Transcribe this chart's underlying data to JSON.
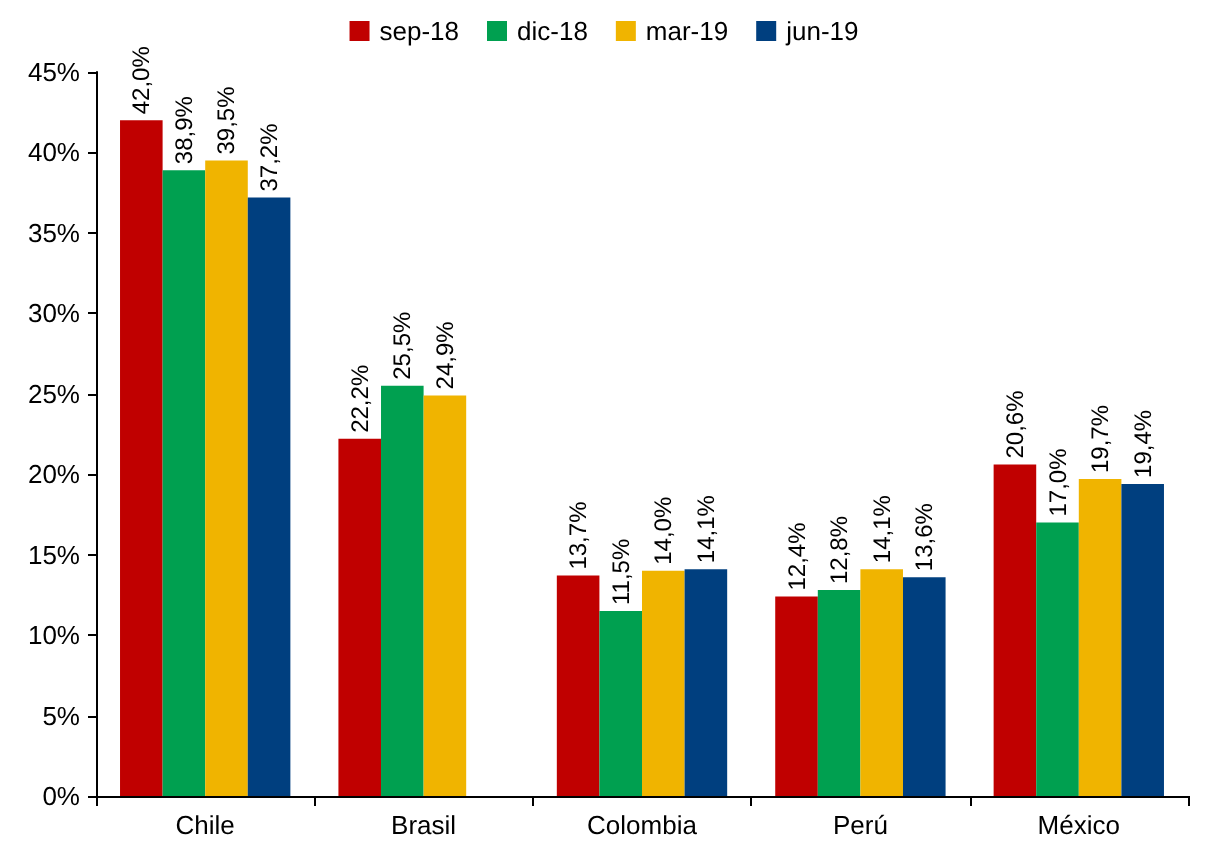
{
  "chart_data": {
    "type": "bar",
    "categories": [
      "Chile",
      "Brasil",
      "Colombia",
      "Perú",
      "México"
    ],
    "series": [
      {
        "name": "sep-18",
        "color": "#c00000",
        "values": [
          42.0,
          22.2,
          13.7,
          12.4,
          20.6
        ],
        "value_labels": [
          "42,0%",
          "22,2%",
          "13,7%",
          "12,4%",
          "20,6%"
        ]
      },
      {
        "name": "dic-18",
        "color": "#00a050",
        "values": [
          38.9,
          25.5,
          11.5,
          12.8,
          17.0
        ],
        "value_labels": [
          "38,9%",
          "25,5%",
          "11,5%",
          "12,8%",
          "17,0%"
        ]
      },
      {
        "name": "mar-19",
        "color": "#f0b400",
        "values": [
          39.5,
          24.9,
          14.0,
          14.1,
          19.7
        ],
        "value_labels": [
          "39,5%",
          "24,9%",
          "14,0%",
          "14,1%",
          "19,7%"
        ]
      },
      {
        "name": "jun-19",
        "color": "#003f7f",
        "values": [
          37.2,
          null,
          14.1,
          13.6,
          19.4
        ],
        "value_labels": [
          "37,2%",
          null,
          "14,1%",
          "13,6%",
          "19,4%"
        ]
      }
    ],
    "ylim": [
      0,
      45
    ],
    "yticks": [
      {
        "value": 0,
        "label": "0%"
      },
      {
        "value": 5,
        "label": "5%"
      },
      {
        "value": 10,
        "label": "10%"
      },
      {
        "value": 15,
        "label": "15%"
      },
      {
        "value": 20,
        "label": "20%"
      },
      {
        "value": 25,
        "label": "25%"
      },
      {
        "value": 30,
        "label": "30%"
      },
      {
        "value": 35,
        "label": "35%"
      },
      {
        "value": 40,
        "label": "40%"
      },
      {
        "value": 45,
        "label": "45%"
      }
    ],
    "grid": false,
    "legend": "top"
  }
}
